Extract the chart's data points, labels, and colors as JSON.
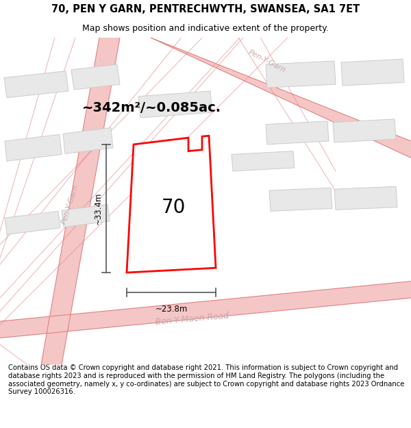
{
  "title_line1": "70, PEN Y GARN, PENTRECHWYTH, SWANSEA, SA1 7ET",
  "title_line2": "Map shows position and indicative extent of the property.",
  "footer_text": "Contains OS data © Crown copyright and database right 2021. This information is subject to Crown copyright and database rights 2023 and is reproduced with the permission of HM Land Registry. The polygons (including the associated geometry, namely x, y co-ordinates) are subject to Crown copyright and database rights 2023 Ordnance Survey 100026316.",
  "area_label": "~342m²/~0.085ac.",
  "house_number": "70",
  "dim_width": "~23.8m",
  "dim_height": "~33.4m",
  "background_color": "#ffffff",
  "map_bg_color": "#f7f7f7",
  "road_fill_color": "#f5c6c6",
  "road_line_color": "#e08080",
  "building_fill": "#e8e8e8",
  "building_edge": "#cccccc",
  "plot_fill": "#ffffff",
  "plot_edge": "#ff0000",
  "road_label_color": "#c8a8a8",
  "dim_line_color": "#555555",
  "title_fontsize": 10.5,
  "subtitle_fontsize": 9,
  "footer_fontsize": 7.2,
  "area_fontsize": 14,
  "house_fontsize": 20,
  "dim_fontsize": 8.5,
  "road_label_fontsize": 8
}
